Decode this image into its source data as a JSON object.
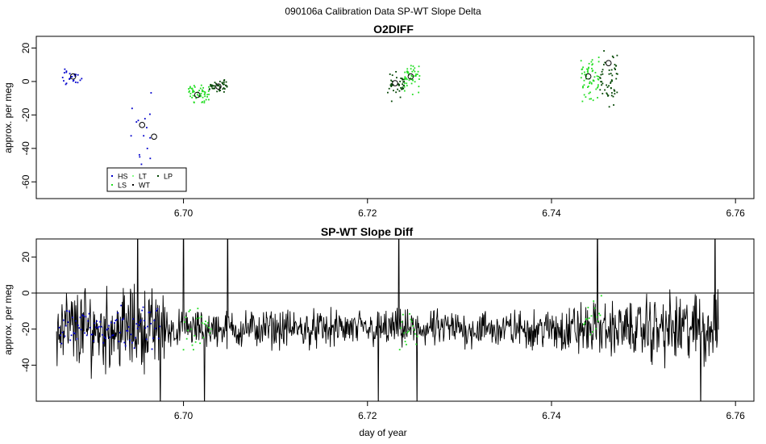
{
  "page_title": "090106a   Calibration Data SP-WT Slope Delta",
  "chart_data": [
    {
      "type": "scatter",
      "title": "O2DIFF",
      "xlabel": "",
      "ylabel": "approx. per meg",
      "xlim": [
        6.684,
        6.762
      ],
      "ylim": [
        -70,
        27
      ],
      "xticks": [
        "6.70",
        "6.72",
        "6.74",
        "6.76"
      ],
      "yticks": [
        "20",
        "0",
        "-20",
        "-40",
        "-60"
      ],
      "legend": {
        "placement": "bottom-left",
        "entries": [
          {
            "label": "HS",
            "color": "#0000cc"
          },
          {
            "label": "LS",
            "color": "#22dd22"
          },
          {
            "label": "LT",
            "color": "#88ff88"
          },
          {
            "label": "WT",
            "color": "#000000"
          },
          {
            "label": "LP",
            "color": "#004400"
          }
        ]
      },
      "clusters": [
        {
          "series": "HS",
          "color": "#0000cc",
          "x": [
            6.6866,
            6.689
          ],
          "y": [
            -6,
            10
          ],
          "n": 25
        },
        {
          "series": "HS",
          "color": "#0000cc",
          "x": [
            6.694,
            6.6975
          ],
          "y": [
            -67,
            2
          ],
          "n": 16
        },
        {
          "series": "LS",
          "color": "#22dd22",
          "x": [
            6.7005,
            6.7028
          ],
          "y": [
            -15,
            0
          ],
          "n": 55
        },
        {
          "series": "LP",
          "color": "#004400",
          "x": [
            6.7028,
            6.7048
          ],
          "y": [
            -8,
            3
          ],
          "n": 40
        },
        {
          "series": "LP",
          "color": "#004400",
          "x": [
            6.7222,
            6.724
          ],
          "y": [
            -14,
            8
          ],
          "n": 40
        },
        {
          "series": "LS",
          "color": "#22dd22",
          "x": [
            6.724,
            6.7257
          ],
          "y": [
            -10,
            18
          ],
          "n": 45
        },
        {
          "series": "LS",
          "color": "#22dd22",
          "x": [
            6.7432,
            6.7452
          ],
          "y": [
            -20,
            22
          ],
          "n": 60
        },
        {
          "series": "LP",
          "color": "#004400",
          "x": [
            6.7452,
            6.7472
          ],
          "y": [
            -18,
            23
          ],
          "n": 55
        }
      ],
      "means": [
        {
          "x": 6.688,
          "y": 3
        },
        {
          "x": 6.6955,
          "y": -26
        },
        {
          "x": 6.6968,
          "y": -33
        },
        {
          "x": 6.7015,
          "y": -8
        },
        {
          "x": 6.7038,
          "y": -3
        },
        {
          "x": 6.723,
          "y": -1
        },
        {
          "x": 6.7247,
          "y": 3
        },
        {
          "x": 6.744,
          "y": 3
        },
        {
          "x": 6.7462,
          "y": 11
        }
      ]
    },
    {
      "type": "line",
      "title": "SP-WT Slope Diff",
      "xlabel": "day of year",
      "ylabel": "approx. per meg",
      "xlim": [
        6.684,
        6.762
      ],
      "ylim": [
        -60,
        30
      ],
      "xticks": [
        "6.70",
        "6.72",
        "6.74",
        "6.76"
      ],
      "yticks": [
        "20",
        "0",
        "-20",
        "-40"
      ],
      "hline": 0,
      "series": [
        {
          "color": "#000000",
          "x_start": 6.6862,
          "x_end": 6.7582,
          "baseline": -20,
          "spread": 8
        },
        {
          "color": "#0000cc",
          "x_start": 6.6865,
          "x_end": 6.6975,
          "baseline": -18
        },
        {
          "color": "#22dd22",
          "x_start": 6.7,
          "x_end": 6.703,
          "baseline": -20
        },
        {
          "color": "#22dd22",
          "x_start": 6.7235,
          "x_end": 6.7255,
          "baseline": -22
        },
        {
          "color": "#22dd22",
          "x_start": 6.7435,
          "x_end": 6.7455,
          "baseline": -12
        }
      ],
      "spikes": [
        6.695,
        6.6975,
        6.7,
        6.7023,
        6.7048,
        6.7212,
        6.7234,
        6.7254,
        6.745,
        6.7562,
        6.7578
      ]
    }
  ]
}
